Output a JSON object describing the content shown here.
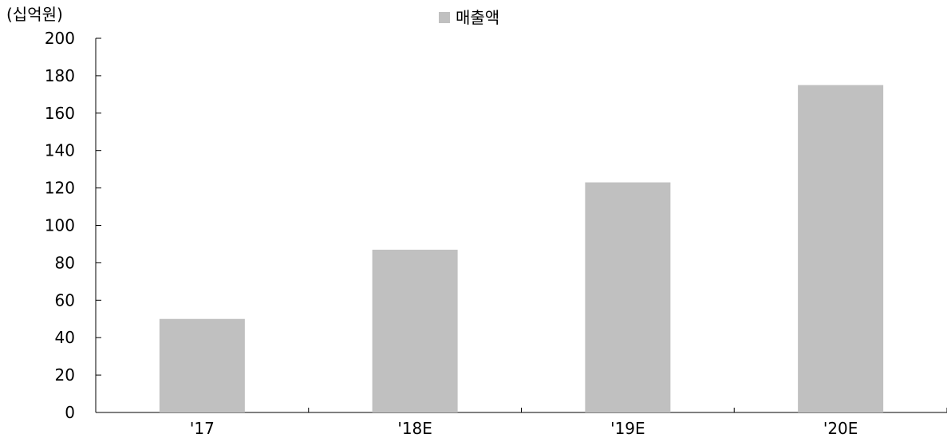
{
  "chart_data": {
    "type": "bar",
    "unit_label": "(십억원)",
    "categories": [
      "'17",
      "'18E",
      "'19E",
      "'20E"
    ],
    "series": [
      {
        "name": "매출액",
        "color": "#c0c0c0",
        "values": [
          50,
          87,
          123,
          175
        ]
      }
    ],
    "ylim": [
      0,
      200
    ],
    "y_ticks": [
      "0",
      "20",
      "40",
      "60",
      "80",
      "100",
      "120",
      "140",
      "160",
      "180",
      "200"
    ],
    "grid": false,
    "legend_position": "top-center"
  }
}
